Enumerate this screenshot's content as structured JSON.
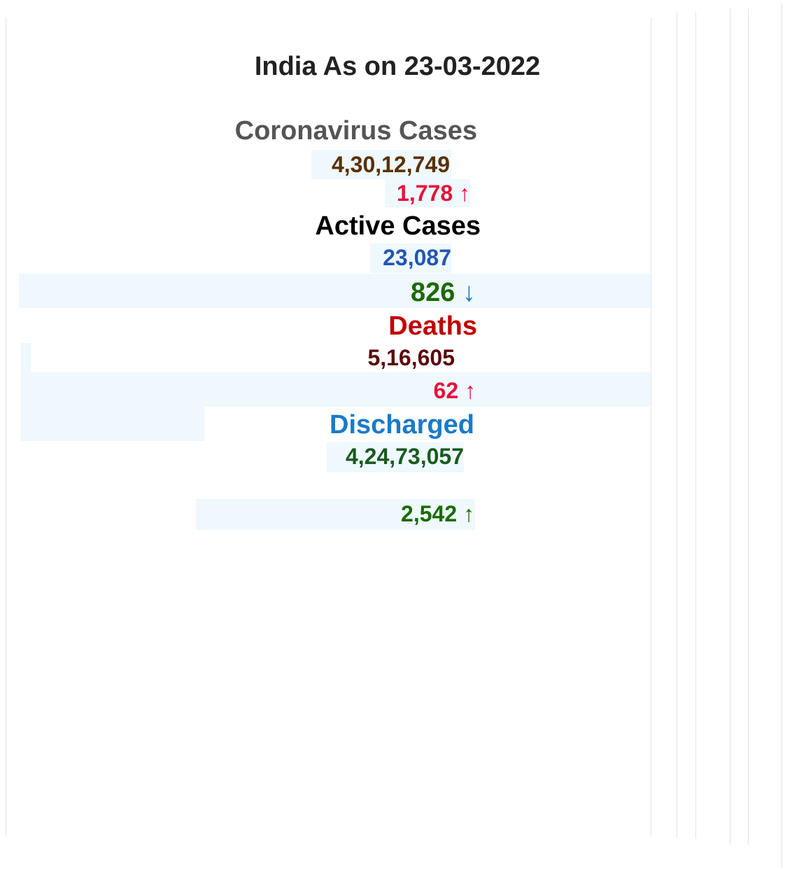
{
  "title": "India As on 23-03-2022",
  "coronavirus_cases": {
    "label": "Coronavirus Cases",
    "total": "4,30,12,749",
    "change": "1,778",
    "arrow": "↑"
  },
  "active_cases": {
    "label": "Active Cases",
    "total": "23,087",
    "change": "826",
    "arrow": "↓"
  },
  "deaths": {
    "label": "Deaths",
    "total": "5,16,605",
    "change": "62",
    "arrow": "↑"
  },
  "discharged": {
    "label": "Discharged",
    "total": "4,24,73,057",
    "change": "2,542",
    "arrow": "↑"
  }
}
